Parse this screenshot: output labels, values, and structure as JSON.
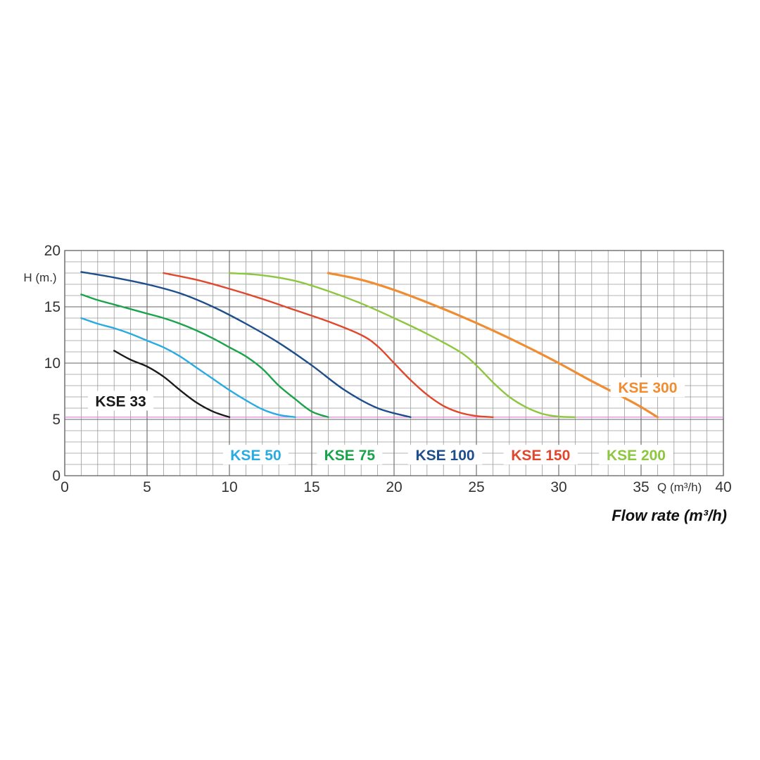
{
  "chart_data": {
    "type": "line",
    "title": "",
    "xlabel": "Flow rate (m³/h)",
    "ylabel": "H (m.)",
    "x_unit_label": "Q (m³/h)",
    "xlim": [
      0,
      40
    ],
    "ylim": [
      0,
      20
    ],
    "x_major_ticks": [
      0,
      5,
      10,
      15,
      20,
      25,
      30,
      35,
      40
    ],
    "y_major_ticks": [
      0,
      5,
      10,
      15,
      20
    ],
    "x_minor_step": 1,
    "y_minor_step": 1,
    "grid": true,
    "reference_line": {
      "y": 5.2,
      "color": "#e27ad6"
    },
    "series": [
      {
        "name": "KSE 33",
        "color": "#1a1a1a",
        "points": [
          [
            3,
            11.1
          ],
          [
            4,
            10.3
          ],
          [
            5,
            9.7
          ],
          [
            6,
            8.8
          ],
          [
            7,
            7.6
          ],
          [
            8,
            6.5
          ],
          [
            9,
            5.7
          ],
          [
            10,
            5.2
          ]
        ]
      },
      {
        "name": "KSE 50",
        "color": "#29abe2",
        "points": [
          [
            1,
            14.0
          ],
          [
            2,
            13.5
          ],
          [
            3,
            13.1
          ],
          [
            4,
            12.6
          ],
          [
            5,
            12.0
          ],
          [
            6,
            11.4
          ],
          [
            7,
            10.6
          ],
          [
            8,
            9.6
          ],
          [
            9,
            8.6
          ],
          [
            10,
            7.6
          ],
          [
            11,
            6.7
          ],
          [
            12,
            5.9
          ],
          [
            13,
            5.4
          ],
          [
            14,
            5.2
          ]
        ]
      },
      {
        "name": "KSE 75",
        "color": "#1aa34a",
        "points": [
          [
            1,
            16.1
          ],
          [
            2,
            15.6
          ],
          [
            3,
            15.2
          ],
          [
            4,
            14.8
          ],
          [
            5,
            14.4
          ],
          [
            6,
            14.0
          ],
          [
            7,
            13.5
          ],
          [
            8,
            12.9
          ],
          [
            9,
            12.2
          ],
          [
            10,
            11.4
          ],
          [
            11,
            10.6
          ],
          [
            12,
            9.5
          ],
          [
            13,
            8.0
          ],
          [
            14,
            6.8
          ],
          [
            15,
            5.7
          ],
          [
            16,
            5.2
          ]
        ]
      },
      {
        "name": "KSE 100",
        "color": "#1f4e8c",
        "points": [
          [
            1,
            18.1
          ],
          [
            3,
            17.6
          ],
          [
            5,
            17.0
          ],
          [
            7,
            16.2
          ],
          [
            9,
            15.0
          ],
          [
            11,
            13.5
          ],
          [
            13,
            11.8
          ],
          [
            15,
            9.8
          ],
          [
            17,
            7.6
          ],
          [
            19,
            6.0
          ],
          [
            21,
            5.2
          ]
        ]
      },
      {
        "name": "KSE 150",
        "color": "#e0472c",
        "points": [
          [
            6,
            18.0
          ],
          [
            8,
            17.4
          ],
          [
            10,
            16.6
          ],
          [
            12,
            15.7
          ],
          [
            14,
            14.7
          ],
          [
            16,
            13.7
          ],
          [
            18,
            12.5
          ],
          [
            19,
            11.5
          ],
          [
            20,
            10.0
          ],
          [
            21,
            8.5
          ],
          [
            22,
            7.2
          ],
          [
            23,
            6.2
          ],
          [
            24,
            5.6
          ],
          [
            25,
            5.3
          ],
          [
            26,
            5.2
          ]
        ]
      },
      {
        "name": "KSE 200",
        "color": "#8dc63f",
        "points": [
          [
            10,
            18.0
          ],
          [
            12,
            17.8
          ],
          [
            14,
            17.3
          ],
          [
            16,
            16.4
          ],
          [
            18,
            15.3
          ],
          [
            20,
            14.0
          ],
          [
            22,
            12.6
          ],
          [
            24,
            11.0
          ],
          [
            25,
            9.8
          ],
          [
            26,
            8.3
          ],
          [
            27,
            7.0
          ],
          [
            28,
            6.1
          ],
          [
            29,
            5.5
          ],
          [
            30,
            5.25
          ],
          [
            31,
            5.2
          ]
        ]
      },
      {
        "name": "KSE 300",
        "color": "#f08c32",
        "points": [
          [
            16,
            18.0
          ],
          [
            18,
            17.4
          ],
          [
            20,
            16.5
          ],
          [
            22,
            15.4
          ],
          [
            24,
            14.2
          ],
          [
            26,
            12.9
          ],
          [
            28,
            11.5
          ],
          [
            30,
            10.0
          ],
          [
            32,
            8.4
          ],
          [
            34,
            6.9
          ],
          [
            35,
            6.1
          ],
          [
            36,
            5.2
          ]
        ]
      }
    ]
  }
}
